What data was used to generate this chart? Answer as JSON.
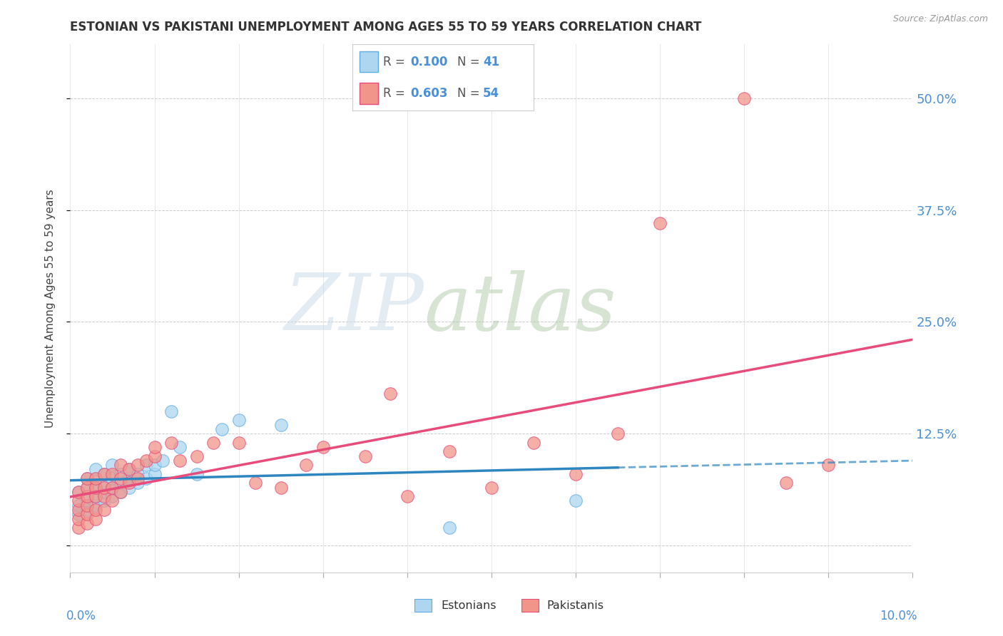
{
  "title": "ESTONIAN VS PAKISTANI UNEMPLOYMENT AMONG AGES 55 TO 59 YEARS CORRELATION CHART",
  "source": "Source: ZipAtlas.com",
  "ylabel": "Unemployment Among Ages 55 to 59 years",
  "xlim": [
    0.0,
    0.1
  ],
  "ylim": [
    -0.03,
    0.56
  ],
  "yticks": [
    0.0,
    0.125,
    0.25,
    0.375,
    0.5
  ],
  "ytick_labels": [
    "",
    "12.5%",
    "25.0%",
    "37.5%",
    "50.0%"
  ],
  "legend_est_R": "0.100",
  "legend_est_N": "41",
  "legend_pak_R": "0.603",
  "legend_pak_N": "54",
  "est_color": "#AED6F1",
  "est_edge_color": "#5DADE2",
  "pak_color": "#F1948A",
  "pak_edge_color": "#E74C7A",
  "est_line_color": "#2E86C1",
  "pak_line_color": "#E74C7A",
  "background_color": "#ffffff",
  "grid_color": "#cccccc",
  "estonians_x": [
    0.001,
    0.001,
    0.001,
    0.002,
    0.002,
    0.002,
    0.002,
    0.003,
    0.003,
    0.003,
    0.003,
    0.003,
    0.004,
    0.004,
    0.004,
    0.004,
    0.005,
    0.005,
    0.005,
    0.005,
    0.006,
    0.006,
    0.006,
    0.007,
    0.007,
    0.007,
    0.008,
    0.008,
    0.009,
    0.009,
    0.01,
    0.01,
    0.011,
    0.012,
    0.013,
    0.015,
    0.018,
    0.02,
    0.025,
    0.045,
    0.06
  ],
  "estonians_y": [
    0.035,
    0.045,
    0.06,
    0.04,
    0.05,
    0.065,
    0.075,
    0.045,
    0.055,
    0.065,
    0.075,
    0.085,
    0.05,
    0.06,
    0.07,
    0.08,
    0.055,
    0.065,
    0.075,
    0.09,
    0.06,
    0.07,
    0.08,
    0.065,
    0.075,
    0.085,
    0.07,
    0.08,
    0.075,
    0.09,
    0.08,
    0.09,
    0.095,
    0.15,
    0.11,
    0.08,
    0.13,
    0.14,
    0.135,
    0.02,
    0.05
  ],
  "pakistanis_x": [
    0.001,
    0.001,
    0.001,
    0.001,
    0.001,
    0.002,
    0.002,
    0.002,
    0.002,
    0.002,
    0.002,
    0.003,
    0.003,
    0.003,
    0.003,
    0.003,
    0.004,
    0.004,
    0.004,
    0.004,
    0.005,
    0.005,
    0.005,
    0.006,
    0.006,
    0.006,
    0.007,
    0.007,
    0.008,
    0.008,
    0.009,
    0.01,
    0.01,
    0.012,
    0.013,
    0.015,
    0.017,
    0.02,
    0.022,
    0.025,
    0.028,
    0.03,
    0.035,
    0.038,
    0.04,
    0.045,
    0.05,
    0.055,
    0.06,
    0.065,
    0.07,
    0.08,
    0.085,
    0.09
  ],
  "pakistanis_y": [
    0.02,
    0.03,
    0.04,
    0.05,
    0.06,
    0.025,
    0.035,
    0.045,
    0.055,
    0.065,
    0.075,
    0.03,
    0.04,
    0.055,
    0.065,
    0.075,
    0.04,
    0.055,
    0.065,
    0.08,
    0.05,
    0.065,
    0.08,
    0.06,
    0.075,
    0.09,
    0.07,
    0.085,
    0.075,
    0.09,
    0.095,
    0.1,
    0.11,
    0.115,
    0.095,
    0.1,
    0.115,
    0.115,
    0.07,
    0.065,
    0.09,
    0.11,
    0.1,
    0.17,
    0.055,
    0.105,
    0.065,
    0.115,
    0.08,
    0.125,
    0.36,
    0.5,
    0.07,
    0.09
  ],
  "est_line_x_solid_end": 0.065,
  "est_line_x_dashed_start": 0.065,
  "pak_line_intercept": 0.025,
  "pak_line_slope": 2.3
}
